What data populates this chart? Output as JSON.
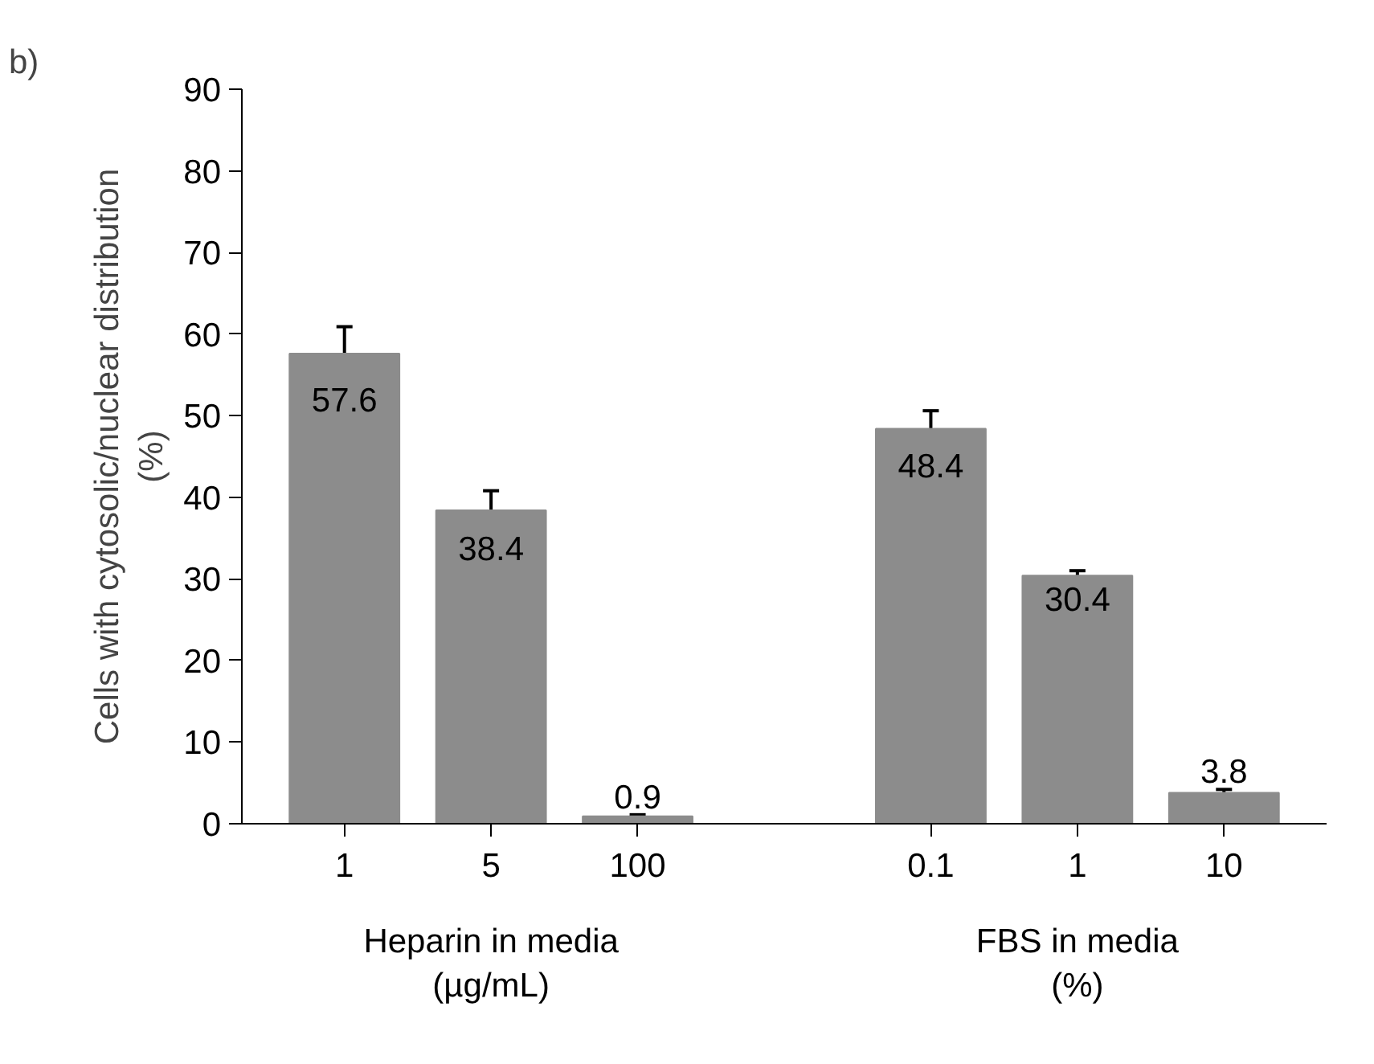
{
  "chart_data": {
    "type": "bar",
    "ylabel": "Cells with cytosolic/nuclear distribution\n(%)",
    "categories": [
      "1",
      "5",
      "100",
      null,
      "0.1",
      "1",
      "10"
    ],
    "values": [
      57.6,
      38.4,
      0.9,
      null,
      48.4,
      30.4,
      3.8
    ],
    "errors": [
      3.3,
      2.4,
      0.2,
      null,
      2.2,
      0.6,
      0.4
    ],
    "color": "#8c8c8c",
    "ylim": [
      0,
      90
    ],
    "yticks": [
      0,
      10,
      20,
      30,
      40,
      50,
      60,
      70,
      80,
      90
    ],
    "data_labels": true,
    "grid": false,
    "annotations": [
      "b)",
      "Heparin in media\n(µg/mL)",
      "FBS in media\n(%)"
    ]
  }
}
